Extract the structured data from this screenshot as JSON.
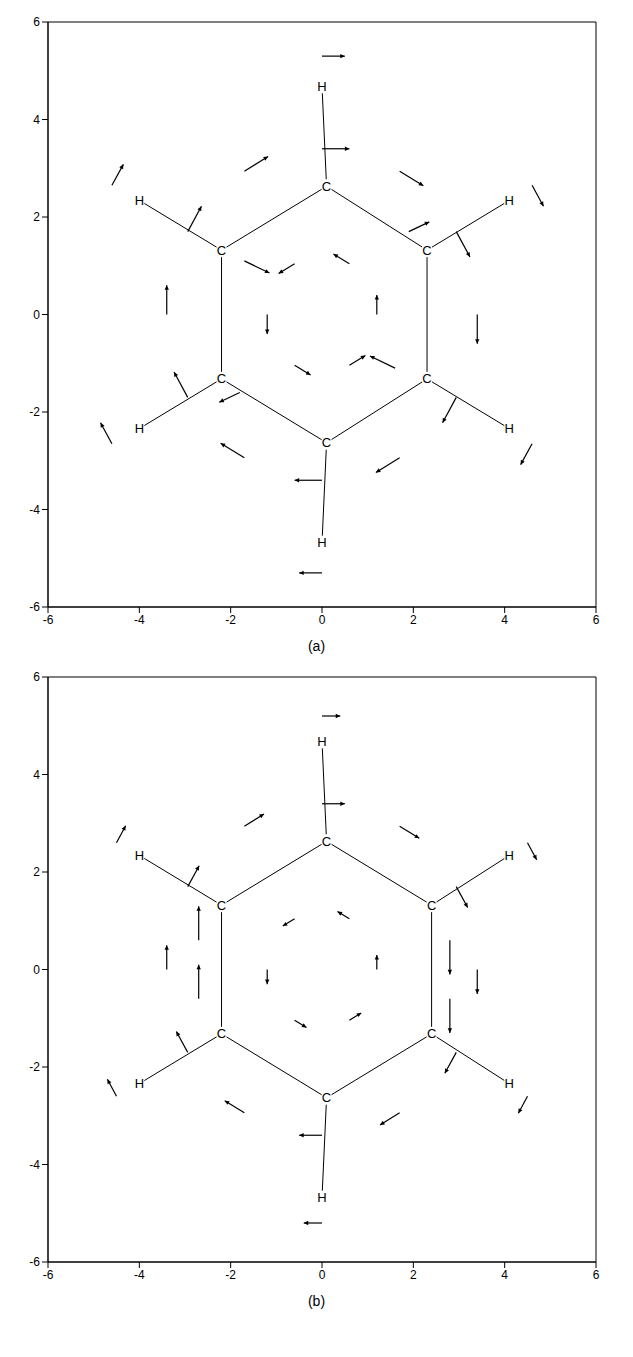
{
  "chart_data": [
    {
      "type": "quiver",
      "label": "(a)",
      "xlim": [
        -6,
        6
      ],
      "ylim": [
        -6,
        6
      ],
      "xticks": [
        -6,
        -4,
        -2,
        0,
        2,
        4,
        6
      ],
      "yticks": [
        -6,
        -4,
        -2,
        0,
        2,
        4,
        6
      ],
      "grid": false,
      "atoms": [
        {
          "label": "C",
          "x": 0.1,
          "y": 2.63
        },
        {
          "label": "C",
          "x": 2.3,
          "y": 1.32
        },
        {
          "label": "C",
          "x": 2.3,
          "y": -1.32
        },
        {
          "label": "C",
          "x": 0.1,
          "y": -2.63
        },
        {
          "label": "C",
          "x": -2.2,
          "y": -1.32
        },
        {
          "label": "C",
          "x": -2.2,
          "y": 1.32
        },
        {
          "label": "H",
          "x": 0.0,
          "y": 4.68
        },
        {
          "label": "H",
          "x": 4.1,
          "y": 2.34
        },
        {
          "label": "H",
          "x": 4.1,
          "y": -2.34
        },
        {
          "label": "H",
          "x": 0.0,
          "y": -4.68
        },
        {
          "label": "H",
          "x": -4.0,
          "y": -2.34
        },
        {
          "label": "H",
          "x": -4.0,
          "y": 2.34
        }
      ],
      "vectors": [
        {
          "x": 3.4,
          "y": 0,
          "u": 0,
          "v": -0.6
        },
        {
          "x": 2.94,
          "y": 1.7,
          "u": 0.3,
          "v": -0.52
        },
        {
          "x": 1.7,
          "y": 2.94,
          "u": 0.52,
          "v": -0.3
        },
        {
          "x": 0,
          "y": 3.4,
          "u": 0.6,
          "v": 0
        },
        {
          "x": -1.7,
          "y": 2.94,
          "u": 0.52,
          "v": 0.3
        },
        {
          "x": -2.94,
          "y": 1.7,
          "u": 0.3,
          "v": 0.52
        },
        {
          "x": -3.4,
          "y": 0,
          "u": 0,
          "v": 0.6
        },
        {
          "x": -2.94,
          "y": -1.7,
          "u": -0.3,
          "v": 0.52
        },
        {
          "x": -1.7,
          "y": -2.94,
          "u": -0.52,
          "v": 0.3
        },
        {
          "x": 0,
          "y": -3.4,
          "u": -0.6,
          "v": 0
        },
        {
          "x": 1.7,
          "y": -2.94,
          "u": -0.52,
          "v": -0.3
        },
        {
          "x": 2.94,
          "y": -1.7,
          "u": -0.3,
          "v": -0.52
        },
        {
          "x": 1.2,
          "y": 0,
          "u": 0,
          "v": 0.4
        },
        {
          "x": 0.6,
          "y": 1.04,
          "u": -0.35,
          "v": 0.2
        },
        {
          "x": -0.6,
          "y": 1.04,
          "u": -0.35,
          "v": -0.2
        },
        {
          "x": -1.2,
          "y": 0,
          "u": 0,
          "v": -0.4
        },
        {
          "x": -0.6,
          "y": -1.04,
          "u": 0.35,
          "v": -0.2
        },
        {
          "x": 0.6,
          "y": -1.04,
          "u": 0.35,
          "v": 0.2
        },
        {
          "x": 0,
          "y": 5.3,
          "u": 0.5,
          "v": 0
        },
        {
          "x": 4.6,
          "y": 2.65,
          "u": 0.25,
          "v": -0.43
        },
        {
          "x": 4.6,
          "y": -2.65,
          "u": -0.25,
          "v": -0.43
        },
        {
          "x": 0,
          "y": -5.3,
          "u": -0.5,
          "v": 0
        },
        {
          "x": -4.6,
          "y": -2.65,
          "u": -0.25,
          "v": 0.43
        },
        {
          "x": -4.6,
          "y": 2.65,
          "u": 0.25,
          "v": 0.43
        },
        {
          "x": -1.7,
          "y": 1.1,
          "u": 0.55,
          "v": -0.25
        },
        {
          "x": 1.6,
          "y": -1.1,
          "u": -0.55,
          "v": 0.25
        },
        {
          "x": -1.8,
          "y": -1.6,
          "u": -0.45,
          "v": -0.2
        },
        {
          "x": 1.9,
          "y": 1.7,
          "u": 0.45,
          "v": 0.2
        }
      ]
    },
    {
      "type": "quiver",
      "label": "(b)",
      "xlim": [
        -6,
        6
      ],
      "ylim": [
        -6,
        6
      ],
      "xticks": [
        -6,
        -4,
        -2,
        0,
        2,
        4,
        6
      ],
      "yticks": [
        -6,
        -4,
        -2,
        0,
        2,
        4,
        6
      ],
      "grid": false,
      "atoms": [
        {
          "label": "C",
          "x": 0.1,
          "y": 2.63
        },
        {
          "label": "C",
          "x": 2.4,
          "y": 1.32
        },
        {
          "label": "C",
          "x": 2.4,
          "y": -1.32
        },
        {
          "label": "C",
          "x": 0.1,
          "y": -2.63
        },
        {
          "label": "C",
          "x": -2.2,
          "y": -1.32
        },
        {
          "label": "C",
          "x": -2.2,
          "y": 1.32
        },
        {
          "label": "H",
          "x": 0.0,
          "y": 4.68
        },
        {
          "label": "H",
          "x": 4.1,
          "y": 2.34
        },
        {
          "label": "H",
          "x": 4.1,
          "y": -2.34
        },
        {
          "label": "H",
          "x": 0.0,
          "y": -4.68
        },
        {
          "label": "H",
          "x": -4.0,
          "y": -2.34
        },
        {
          "label": "H",
          "x": -4.0,
          "y": 2.34
        }
      ],
      "vectors": [
        {
          "x": 3.4,
          "y": 0,
          "u": 0,
          "v": -0.5
        },
        {
          "x": 2.94,
          "y": 1.7,
          "u": 0.25,
          "v": -0.43
        },
        {
          "x": 1.7,
          "y": 2.94,
          "u": 0.43,
          "v": -0.25
        },
        {
          "x": 0,
          "y": 3.4,
          "u": 0.5,
          "v": 0
        },
        {
          "x": -1.7,
          "y": 2.94,
          "u": 0.43,
          "v": 0.25
        },
        {
          "x": -2.94,
          "y": 1.7,
          "u": 0.25,
          "v": 0.43
        },
        {
          "x": -3.4,
          "y": 0,
          "u": 0,
          "v": 0.5
        },
        {
          "x": -2.94,
          "y": -1.7,
          "u": -0.25,
          "v": 0.43
        },
        {
          "x": -1.7,
          "y": -2.94,
          "u": -0.43,
          "v": 0.25
        },
        {
          "x": 0,
          "y": -3.4,
          "u": -0.5,
          "v": 0
        },
        {
          "x": 1.7,
          "y": -2.94,
          "u": -0.43,
          "v": -0.25
        },
        {
          "x": 2.94,
          "y": -1.7,
          "u": -0.25,
          "v": -0.43
        },
        {
          "x": 1.2,
          "y": 0,
          "u": 0,
          "v": 0.3
        },
        {
          "x": 0.6,
          "y": 1.04,
          "u": -0.26,
          "v": 0.15
        },
        {
          "x": -0.6,
          "y": 1.04,
          "u": -0.26,
          "v": -0.15
        },
        {
          "x": -1.2,
          "y": 0,
          "u": 0,
          "v": -0.3
        },
        {
          "x": -0.6,
          "y": -1.04,
          "u": 0.26,
          "v": -0.15
        },
        {
          "x": 0.6,
          "y": -1.04,
          "u": 0.26,
          "v": 0.15
        },
        {
          "x": 0,
          "y": 5.2,
          "u": 0.4,
          "v": 0
        },
        {
          "x": 4.5,
          "y": 2.6,
          "u": 0.2,
          "v": -0.35
        },
        {
          "x": 4.5,
          "y": -2.6,
          "u": -0.2,
          "v": -0.35
        },
        {
          "x": 0,
          "y": -5.2,
          "u": -0.4,
          "v": 0
        },
        {
          "x": -4.5,
          "y": -2.6,
          "u": -0.2,
          "v": 0.35
        },
        {
          "x": -4.5,
          "y": 2.6,
          "u": 0.2,
          "v": 0.35
        },
        {
          "x": 2.8,
          "y": 0.6,
          "u": 0,
          "v": -0.7
        },
        {
          "x": 2.8,
          "y": -0.6,
          "u": 0,
          "v": -0.7
        },
        {
          "x": -2.7,
          "y": 0.6,
          "u": 0,
          "v": 0.7
        },
        {
          "x": -2.7,
          "y": -0.6,
          "u": 0,
          "v": 0.7
        }
      ]
    }
  ]
}
